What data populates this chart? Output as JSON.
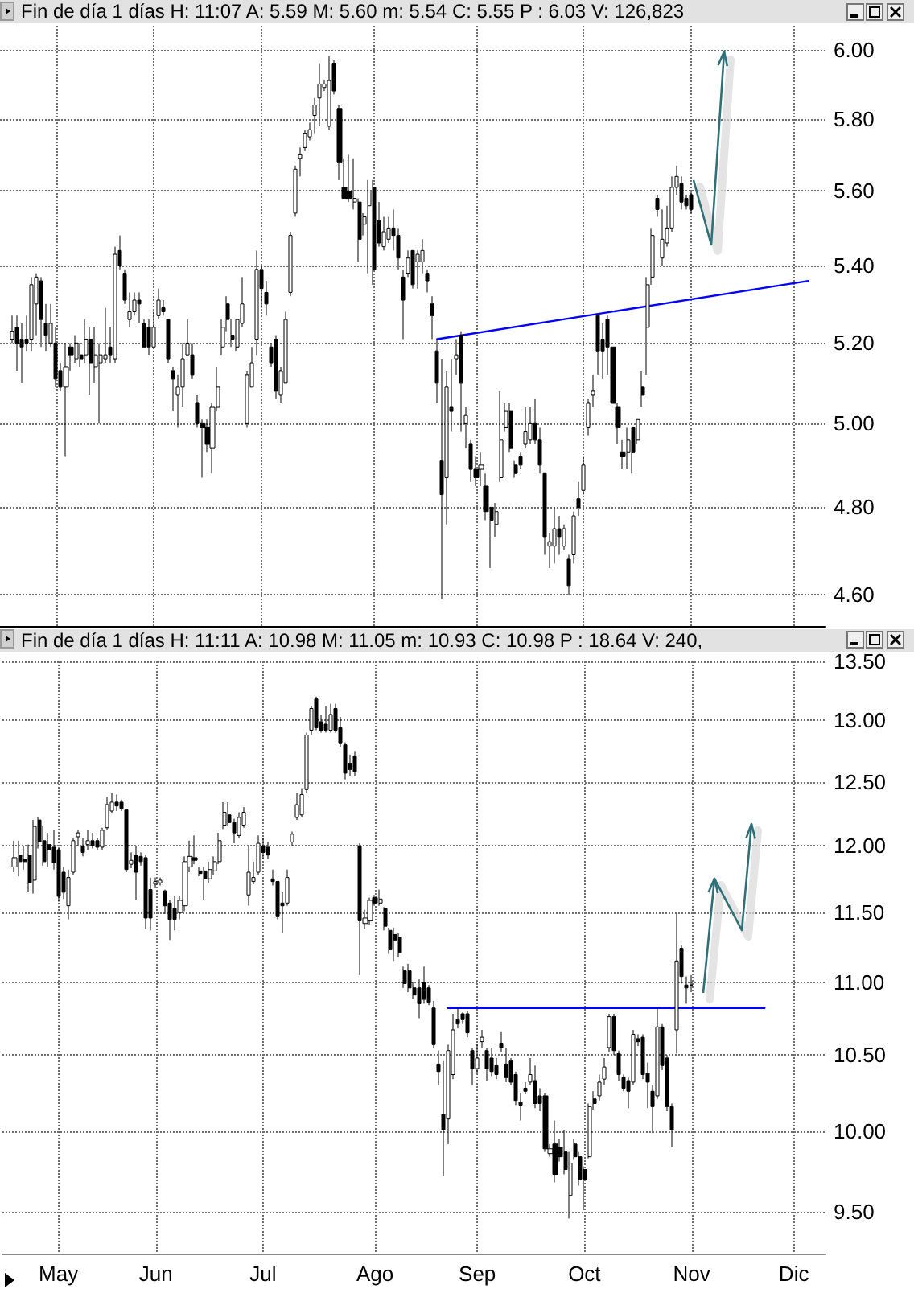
{
  "chart_data": [
    {
      "type": "candlestick",
      "title": "Fin de día 1 días H: 11:07 A: 5.59 M: 5.60 m: 5.54 C: 5.55 P : 6.03 V: 126,823",
      "categories": [
        null,
        null,
        null,
        null,
        null,
        null,
        null,
        null,
        null,
        null,
        null,
        null,
        null,
        null,
        null,
        null,
        null,
        null,
        null,
        null,
        null,
        null,
        null,
        null,
        null,
        null,
        null,
        null,
        null,
        null,
        null,
        null,
        null,
        null,
        null,
        null,
        null,
        null,
        null,
        null,
        null,
        null,
        null,
        null,
        null,
        null,
        null,
        null,
        null,
        null,
        null,
        null,
        null,
        null,
        null,
        null,
        null,
        null,
        null,
        null,
        null,
        null,
        null,
        null,
        null,
        null,
        null,
        null,
        null,
        null,
        null,
        null,
        null,
        null,
        null,
        null,
        null,
        null,
        null,
        null,
        null,
        null,
        null,
        null,
        null,
        null,
        null,
        null,
        null,
        null,
        null,
        null,
        null,
        null,
        null,
        null,
        null,
        null,
        null,
        null,
        null,
        null,
        null,
        null,
        null,
        null,
        null,
        null,
        null,
        null,
        null,
        null,
        null,
        null,
        null,
        null,
        null,
        null,
        null,
        null,
        null,
        null,
        null,
        null,
        null,
        null,
        null,
        null,
        null,
        null,
        null,
        null,
        null,
        null,
        null,
        null,
        null,
        null,
        null,
        null,
        null,
        null,
        null,
        null,
        null,
        null,
        null,
        null,
        null,
        null,
        null,
        null,
        null,
        null,
        null,
        null,
        null,
        null,
        null,
        null,
        null,
        null,
        null,
        null,
        null,
        null,
        null,
        null,
        null
      ],
      "ohlc": [
        null,
        null,
        [
          5.21,
          5.27,
          5.2,
          5.23
        ],
        [
          5.24,
          5.27,
          5.13,
          5.2
        ],
        [
          5.21,
          5.25,
          5.1,
          5.19
        ],
        [
          5.21,
          5.27,
          5.18,
          5.2
        ],
        [
          5.21,
          5.37,
          5.18,
          5.35
        ],
        [
          5.3,
          5.38,
          5.22,
          5.37
        ],
        [
          5.36,
          5.37,
          5.19,
          5.26
        ],
        [
          5.25,
          5.3,
          5.18,
          5.22
        ],
        [
          5.2,
          5.3,
          5.19,
          5.25
        ],
        [
          5.2,
          5.24,
          5.09,
          5.11
        ],
        [
          5.13,
          5.15,
          5.08,
          5.09
        ],
        [
          5.09,
          5.2,
          4.92,
          5.14
        ],
        [
          5.19,
          5.2,
          5.13,
          5.17
        ],
        [
          5.16,
          5.22,
          5.15,
          5.2
        ],
        [
          5.17,
          5.2,
          5.14,
          5.16
        ],
        [
          5.17,
          5.26,
          5.15,
          5.21
        ],
        [
          5.21,
          5.24,
          5.07,
          5.15
        ],
        [
          5.14,
          5.24,
          5.1,
          5.17
        ],
        [
          5.15,
          5.2,
          5.0,
          5.17
        ],
        [
          5.16,
          5.29,
          5.15,
          5.17
        ],
        [
          5.19,
          5.24,
          5.15,
          5.17
        ],
        [
          5.16,
          5.45,
          5.15,
          5.43
        ],
        [
          5.44,
          5.48,
          5.39,
          5.4
        ],
        [
          5.38,
          5.39,
          5.3,
          5.31
        ],
        [
          5.26,
          5.33,
          5.24,
          5.28
        ],
        [
          5.28,
          5.33,
          5.27,
          5.31
        ],
        [
          5.31,
          5.33,
          5.25,
          5.3
        ],
        [
          5.25,
          5.26,
          5.19,
          5.19
        ],
        [
          5.24,
          5.26,
          5.17,
          5.19
        ],
        [
          5.19,
          5.28,
          5.19,
          5.24
        ],
        [
          5.27,
          5.34,
          5.26,
          5.31
        ],
        [
          5.29,
          5.31,
          5.27,
          5.28
        ],
        [
          5.26,
          5.26,
          5.15,
          5.16
        ],
        [
          5.13,
          5.14,
          5.03,
          5.11
        ],
        [
          5.07,
          5.12,
          4.99,
          5.09
        ],
        [
          5.09,
          5.2,
          5.04,
          5.16
        ],
        [
          5.17,
          5.26,
          5.17,
          5.2
        ],
        [
          5.17,
          5.2,
          5.11,
          5.12
        ],
        [
          5.05,
          5.07,
          4.99,
          5.0
        ],
        [
          5.0,
          5.01,
          4.87,
          4.99
        ],
        [
          4.99,
          5.01,
          4.93,
          4.95
        ],
        [
          4.94,
          5.05,
          4.88,
          5.04
        ],
        [
          5.04,
          5.14,
          5.03,
          5.09
        ],
        [
          5.19,
          5.26,
          5.17,
          5.24
        ],
        [
          5.3,
          5.32,
          5.23,
          5.26
        ],
        [
          5.22,
          5.26,
          5.19,
          5.21
        ],
        [
          5.19,
          5.26,
          5.18,
          5.26
        ],
        [
          5.25,
          5.37,
          5.24,
          5.3
        ],
        [
          5.0,
          5.13,
          4.99,
          5.12
        ],
        [
          5.09,
          5.19,
          5.09,
          5.15
        ],
        [
          5.21,
          5.44,
          5.17,
          5.39
        ],
        [
          5.39,
          5.4,
          5.29,
          5.34
        ],
        [
          5.33,
          5.36,
          5.27,
          5.3
        ],
        [
          5.19,
          5.2,
          5.14,
          5.15
        ],
        [
          5.21,
          5.22,
          5.06,
          5.08
        ],
        [
          5.07,
          5.14,
          5.05,
          5.13
        ],
        [
          5.1,
          5.28,
          5.1,
          5.26
        ],
        [
          5.33,
          5.49,
          5.32,
          5.48
        ],
        [
          5.54,
          5.67,
          5.53,
          5.66
        ],
        [
          5.69,
          5.72,
          5.64,
          5.7
        ],
        [
          5.72,
          5.77,
          5.71,
          5.76
        ],
        [
          5.75,
          5.79,
          5.74,
          5.77
        ],
        [
          5.81,
          5.86,
          5.76,
          5.84
        ],
        [
          5.86,
          5.96,
          5.78,
          5.9
        ],
        [
          5.89,
          5.91,
          5.88,
          5.9
        ],
        [
          5.78,
          5.98,
          5.77,
          5.91
        ],
        [
          5.96,
          5.97,
          5.87,
          5.88
        ],
        [
          5.83,
          5.84,
          5.63,
          5.68
        ],
        [
          5.61,
          5.69,
          5.58,
          5.58
        ],
        [
          5.6,
          5.7,
          5.57,
          5.58
        ],
        [
          5.57,
          5.69,
          5.55,
          5.58
        ],
        [
          5.57,
          5.58,
          5.41,
          5.47
        ],
        [
          5.51,
          5.54,
          5.48,
          5.53
        ],
        [
          5.56,
          5.63,
          5.38,
          5.6
        ],
        [
          5.61,
          5.63,
          5.35,
          5.39
        ],
        [
          5.52,
          5.57,
          5.45,
          5.46
        ],
        [
          5.45,
          5.53,
          5.44,
          5.49
        ],
        [
          5.47,
          5.53,
          5.46,
          5.5
        ],
        [
          5.5,
          5.55,
          5.44,
          5.48
        ],
        [
          5.48,
          5.5,
          5.39,
          5.42
        ],
        [
          5.37,
          5.39,
          5.21,
          5.31
        ],
        [
          5.38,
          5.44,
          5.37,
          5.42
        ],
        [
          5.44,
          5.44,
          5.34,
          5.35
        ],
        [
          5.41,
          5.44,
          5.34,
          5.43
        ],
        [
          5.41,
          5.47,
          5.38,
          5.44
        ],
        [
          5.38,
          5.39,
          5.33,
          5.36
        ],
        [
          5.3,
          5.32,
          5.21,
          5.27
        ],
        [
          5.18,
          5.21,
          5.05,
          5.1
        ],
        [
          4.91,
          5.16,
          4.59,
          4.83
        ],
        [
          4.87,
          5.13,
          4.76,
          5.09
        ],
        [
          5.04,
          5.16,
          4.98,
          5.03
        ],
        [
          5.16,
          5.21,
          5.12,
          5.17
        ],
        [
          5.22,
          5.23,
          4.98,
          5.1
        ],
        [
          5.0,
          5.04,
          4.94,
          5.02
        ],
        [
          4.95,
          4.96,
          4.86,
          4.89
        ],
        [
          4.89,
          4.92,
          4.85,
          4.87
        ],
        [
          4.89,
          4.93,
          4.85,
          4.9
        ],
        [
          4.85,
          4.88,
          4.77,
          4.79
        ],
        [
          4.8,
          4.8,
          4.66,
          4.77
        ],
        [
          4.76,
          4.81,
          4.73,
          4.79
        ],
        [
          4.87,
          5.08,
          4.86,
          4.96
        ],
        [
          4.99,
          5.05,
          4.98,
          5.03
        ],
        [
          5.03,
          5.05,
          4.93,
          4.94
        ],
        [
          4.9,
          4.91,
          4.87,
          4.88
        ],
        [
          4.92,
          4.93,
          4.89,
          4.9
        ],
        [
          4.95,
          5.04,
          4.94,
          4.98
        ],
        [
          4.96,
          5.04,
          4.95,
          5.0
        ],
        [
          5.0,
          5.06,
          4.95,
          4.96
        ],
        [
          4.96,
          4.99,
          4.88,
          4.9
        ],
        [
          4.88,
          4.88,
          4.69,
          4.73
        ],
        [
          4.71,
          4.74,
          4.66,
          4.72
        ],
        [
          4.71,
          4.8,
          4.67,
          4.75
        ],
        [
          4.75,
          4.78,
          4.69,
          4.73
        ],
        [
          4.71,
          4.76,
          4.7,
          4.75
        ],
        [
          4.68,
          4.69,
          4.6,
          4.62
        ],
        [
          4.69,
          4.79,
          4.67,
          4.78
        ],
        [
          4.82,
          4.86,
          4.78,
          4.8
        ],
        [
          4.84,
          4.92,
          4.83,
          4.9
        ],
        [
          4.99,
          5.06,
          4.97,
          5.05
        ],
        [
          5.07,
          5.12,
          5.04,
          5.08
        ],
        [
          5.27,
          5.27,
          5.12,
          5.18
        ],
        [
          5.21,
          5.25,
          5.11,
          5.18
        ],
        [
          5.26,
          5.27,
          5.12,
          5.19
        ],
        [
          5.19,
          5.19,
          5.05,
          5.05
        ],
        [
          5.04,
          5.05,
          4.95,
          4.99
        ],
        [
          4.93,
          4.96,
          4.89,
          4.92
        ],
        [
          4.93,
          4.99,
          4.89,
          4.96
        ],
        [
          4.99,
          4.99,
          4.88,
          4.93
        ],
        [
          4.96,
          5.01,
          4.95,
          5.01
        ],
        [
          5.09,
          5.13,
          5.04,
          5.07
        ],
        [
          5.24,
          5.37,
          5.12,
          5.35
        ],
        [
          5.37,
          5.5,
          5.35,
          5.48
        ],
        [
          5.58,
          5.59,
          5.53,
          5.55
        ],
        [
          5.42,
          5.55,
          5.4,
          5.47
        ],
        [
          5.46,
          5.56,
          5.45,
          5.5
        ],
        [
          5.5,
          5.64,
          5.49,
          5.61
        ],
        [
          5.61,
          5.67,
          5.59,
          5.64
        ],
        [
          5.62,
          5.64,
          5.55,
          5.57
        ],
        [
          5.58,
          5.59,
          5.55,
          5.56
        ],
        [
          5.59,
          5.6,
          5.54,
          5.55
        ],
        null,
        null,
        null,
        null,
        null,
        null,
        null,
        null,
        null,
        null,
        null,
        null,
        null,
        null,
        null,
        null,
        null,
        null,
        null,
        null,
        null,
        null,
        null,
        null,
        null,
        null,
        null
      ],
      "color": "#000000",
      "series": [
        {
          "type": "line",
          "color": "#0000ff",
          "values": [
            null,
            null,
            null,
            null,
            null,
            null,
            null,
            null,
            null,
            null,
            null,
            null,
            null,
            null,
            null,
            null,
            null,
            null,
            null,
            null,
            null,
            null,
            null,
            null,
            null,
            null,
            null,
            null,
            null,
            null,
            null,
            null,
            null,
            null,
            null,
            null,
            null,
            null,
            null,
            null,
            null,
            null,
            null,
            null,
            null,
            null,
            null,
            null,
            null,
            null,
            null,
            null,
            null,
            null,
            null,
            null,
            null,
            null,
            null,
            null,
            null,
            null,
            null,
            null,
            null,
            null,
            null,
            null,
            null,
            null,
            null,
            null,
            null,
            null,
            null,
            null,
            null,
            null,
            null,
            null,
            null,
            null,
            null,
            null,
            null,
            null,
            null,
            null,
            null,
            5.21,
            null,
            null,
            null,
            null,
            null,
            null,
            null,
            null,
            null,
            null,
            null,
            null,
            null,
            null,
            null,
            null,
            null,
            null,
            null,
            null,
            null,
            null,
            null,
            null,
            null,
            null,
            null,
            null,
            null,
            null,
            null,
            null,
            null,
            null,
            null,
            null,
            null,
            null,
            null,
            null,
            null,
            null,
            null,
            null,
            null,
            null,
            null,
            null,
            null,
            null,
            null,
            null,
            null,
            null,
            null,
            null,
            null,
            null,
            null,
            null,
            null,
            null,
            null,
            null,
            null,
            null,
            null,
            null,
            null,
            null,
            null,
            null,
            null,
            null,
            null,
            5.36,
            null,
            null,
            null
          ]
        }
      ],
      "ylim": [
        4.53,
        6.07
      ],
      "yticks": [
        {
          "value": 4.6,
          "label": "4.60"
        },
        {
          "value": 4.8,
          "label": "4.80"
        },
        {
          "value": 5,
          "label": "5.00"
        },
        {
          "value": 5.2,
          "label": "5.20"
        },
        {
          "value": 5.4,
          "label": "5.40"
        },
        {
          "value": 5.6,
          "label": "5.60"
        },
        {
          "value": 5.8,
          "label": "5.80"
        },
        {
          "value": 6,
          "label": "6.00"
        }
      ],
      "log": "y",
      "grid": true,
      "tick_labels": "y"
    },
    {
      "type": "candlestick",
      "title": "Fin de día 1 días H: 11:11 A: 10.98 M: 11.05 m: 10.93 C: 10.98 P : 18.64 V: 240,",
      "categories": [
        null,
        null,
        null,
        null,
        null,
        null,
        null,
        null,
        null,
        null,
        null,
        "May",
        null,
        null,
        null,
        null,
        null,
        null,
        null,
        null,
        null,
        null,
        null,
        null,
        null,
        null,
        null,
        null,
        null,
        null,
        null,
        "Jun",
        null,
        null,
        null,
        null,
        null,
        null,
        null,
        null,
        null,
        null,
        null,
        null,
        null,
        null,
        null,
        null,
        null,
        null,
        null,
        null,
        null,
        "Jul",
        null,
        null,
        null,
        null,
        null,
        null,
        null,
        null,
        null,
        null,
        null,
        null,
        null,
        null,
        null,
        null,
        null,
        null,
        null,
        null,
        null,
        null,
        "Ago",
        null,
        null,
        null,
        null,
        null,
        null,
        null,
        null,
        null,
        null,
        null,
        null,
        null,
        null,
        null,
        null,
        null,
        null,
        null,
        null,
        "Sep",
        null,
        null,
        null,
        null,
        null,
        null,
        null,
        null,
        null,
        null,
        null,
        null,
        null,
        null,
        null,
        null,
        null,
        null,
        null,
        null,
        null,
        "Oct",
        null,
        null,
        null,
        null,
        null,
        null,
        null,
        null,
        null,
        null,
        null,
        null,
        null,
        null,
        null,
        null,
        null,
        null,
        null,
        null,
        null,
        "Nov",
        null,
        null,
        null,
        null,
        null,
        null,
        null,
        null,
        null,
        null,
        null,
        null,
        null,
        null,
        null,
        null,
        null,
        null,
        null,
        null,
        "Dic",
        null,
        null,
        null,
        null,
        null,
        null
      ],
      "ohlc": [
        null,
        null,
        [
          11.84,
          12.04,
          11.8,
          11.91
        ],
        [
          11.93,
          12.04,
          11.77,
          11.88
        ],
        [
          11.9,
          12.0,
          11.82,
          11.88
        ],
        [
          11.93,
          12.01,
          11.65,
          11.72
        ],
        [
          11.74,
          12.2,
          11.64,
          12.15
        ],
        [
          12.2,
          12.22,
          11.98,
          12.03
        ],
        [
          12.04,
          12.15,
          11.85,
          11.88
        ],
        [
          12.01,
          12.1,
          11.84,
          11.97
        ],
        [
          11.99,
          12.12,
          11.82,
          11.87
        ],
        [
          11.97,
          11.99,
          11.58,
          11.62
        ],
        [
          11.8,
          11.84,
          11.6,
          11.65
        ],
        [
          11.55,
          11.82,
          11.45,
          11.76
        ],
        [
          11.8,
          12.06,
          11.78,
          12.04
        ],
        [
          12.07,
          12.12,
          12.0,
          12.1
        ],
        [
          12.0,
          12.06,
          11.92,
          11.95
        ],
        [
          12.01,
          12.12,
          11.97,
          12.04
        ],
        [
          12.04,
          12.1,
          11.98,
          12.0
        ],
        [
          12.04,
          12.06,
          11.97,
          11.99
        ],
        [
          11.99,
          12.14,
          11.97,
          12.12
        ],
        [
          12.14,
          12.38,
          12.12,
          12.32
        ],
        [
          12.27,
          12.41,
          12.25,
          12.34
        ],
        [
          12.34,
          12.4,
          12.27,
          12.31
        ],
        [
          12.34,
          12.36,
          12.27,
          12.29
        ],
        [
          12.28,
          12.28,
          11.8,
          11.82
        ],
        [
          11.86,
          11.95,
          11.83,
          11.89
        ],
        [
          11.93,
          12.0,
          11.59,
          11.8
        ],
        [
          11.92,
          11.95,
          11.85,
          11.88
        ],
        [
          11.91,
          11.93,
          11.38,
          11.46
        ],
        [
          11.67,
          11.76,
          11.37,
          11.46
        ],
        [
          11.71,
          11.76,
          11.68,
          11.73
        ],
        [
          11.72,
          11.76,
          11.7,
          11.74
        ],
        [
          11.66,
          11.67,
          11.49,
          11.55
        ],
        [
          11.57,
          11.59,
          11.3,
          11.45
        ],
        [
          11.53,
          11.62,
          11.37,
          11.45
        ],
        [
          11.5,
          11.62,
          11.45,
          11.59
        ],
        [
          11.55,
          11.92,
          11.51,
          11.88
        ],
        [
          11.84,
          12.04,
          11.8,
          11.92
        ],
        [
          11.91,
          12.08,
          11.86,
          11.89
        ],
        [
          11.81,
          11.84,
          11.77,
          11.79
        ],
        [
          11.81,
          11.84,
          11.59,
          11.75
        ],
        [
          11.75,
          11.88,
          11.72,
          11.82
        ],
        [
          11.81,
          11.92,
          11.78,
          11.88
        ],
        [
          11.88,
          12.1,
          11.86,
          12.04
        ],
        [
          12.16,
          12.34,
          12.13,
          12.26
        ],
        [
          12.24,
          12.34,
          12.15,
          12.18
        ],
        [
          12.18,
          12.21,
          12.02,
          12.1
        ],
        [
          12.08,
          12.26,
          12.06,
          12.22
        ],
        [
          12.16,
          12.3,
          12.14,
          12.26
        ],
        [
          11.63,
          12.0,
          11.55,
          11.8
        ],
        [
          11.73,
          11.88,
          11.71,
          11.76
        ],
        [
          11.8,
          12.08,
          11.78,
          12.02
        ],
        [
          12.0,
          12.06,
          11.9,
          11.95
        ],
        [
          11.99,
          12.03,
          11.9,
          11.93
        ],
        [
          11.75,
          11.82,
          11.7,
          11.73
        ],
        [
          11.73,
          11.73,
          11.45,
          11.47
        ],
        [
          11.57,
          11.65,
          11.35,
          11.55
        ],
        [
          11.57,
          11.82,
          11.55,
          11.76
        ],
        [
          12.03,
          12.11,
          12.0,
          12.09
        ],
        [
          12.22,
          12.41,
          12.2,
          12.32
        ],
        [
          12.24,
          12.45,
          12.22,
          12.4
        ],
        [
          12.44,
          12.9,
          12.41,
          12.88
        ],
        [
          12.92,
          13.12,
          12.88,
          13.1
        ],
        [
          13.18,
          13.2,
          12.92,
          12.94
        ],
        [
          12.99,
          13.05,
          12.9,
          12.92
        ],
        [
          12.97,
          13.12,
          12.9,
          12.92
        ],
        [
          12.92,
          13.14,
          12.9,
          13.05
        ],
        [
          13.1,
          13.14,
          12.9,
          12.92
        ],
        [
          12.94,
          13.03,
          12.78,
          12.81
        ],
        [
          12.8,
          12.82,
          12.52,
          12.57
        ],
        [
          12.65,
          12.72,
          12.55,
          12.6
        ],
        [
          12.71,
          12.75,
          12.55,
          12.58
        ],
        [
          12.0,
          12.02,
          11.05,
          11.44
        ],
        [
          11.42,
          11.52,
          11.38,
          11.46
        ],
        [
          11.44,
          11.61,
          11.41,
          11.59
        ],
        [
          11.61,
          11.63,
          11.55,
          11.57
        ],
        [
          11.57,
          11.67,
          11.55,
          11.6
        ],
        [
          11.53,
          11.54,
          11.37,
          11.4
        ],
        [
          11.37,
          11.39,
          11.2,
          11.23
        ],
        [
          11.34,
          11.39,
          11.15,
          11.3
        ],
        [
          11.32,
          11.35,
          11.18,
          11.21
        ],
        [
          11.08,
          11.11,
          10.96,
          10.99
        ],
        [
          11.08,
          11.13,
          10.93,
          10.96
        ],
        [
          10.96,
          11.0,
          10.88,
          10.91
        ],
        [
          10.96,
          11.02,
          10.75,
          10.85
        ],
        [
          11.0,
          11.11,
          10.85,
          10.88
        ],
        [
          10.96,
          10.98,
          10.84,
          10.86
        ],
        [
          10.82,
          10.87,
          10.55,
          10.57
        ],
        [
          10.44,
          10.53,
          10.3,
          10.39
        ],
        [
          10.11,
          10.46,
          9.72,
          10.01
        ],
        [
          10.08,
          10.57,
          9.92,
          10.53
        ],
        [
          10.37,
          10.78,
          10.34,
          10.67
        ],
        [
          10.74,
          10.82,
          10.68,
          10.71
        ],
        [
          10.78,
          10.79,
          10.71,
          10.74
        ],
        [
          10.78,
          10.8,
          10.62,
          10.65
        ],
        [
          10.53,
          10.55,
          10.3,
          10.41
        ],
        [
          10.41,
          10.57,
          10.38,
          10.48
        ],
        [
          10.59,
          10.67,
          10.55,
          10.62
        ],
        [
          10.53,
          10.55,
          10.33,
          10.41
        ],
        [
          10.48,
          10.55,
          10.36,
          10.39
        ],
        [
          10.43,
          10.48,
          10.34,
          10.37
        ],
        [
          10.58,
          10.66,
          10.52,
          10.55
        ],
        [
          10.44,
          10.55,
          10.32,
          10.35
        ],
        [
          10.46,
          10.48,
          10.3,
          10.32
        ],
        [
          10.37,
          10.39,
          10.17,
          10.2
        ],
        [
          10.19,
          10.25,
          10.07,
          10.17
        ],
        [
          10.28,
          10.32,
          10.24,
          10.26
        ],
        [
          10.32,
          10.48,
          10.3,
          10.37
        ],
        [
          10.33,
          10.43,
          10.15,
          10.18
        ],
        [
          10.23,
          10.28,
          10.13,
          10.18
        ],
        [
          10.23,
          10.25,
          9.87,
          9.89
        ],
        [
          9.86,
          9.92,
          9.84,
          9.89
        ],
        [
          9.92,
          10.07,
          9.68,
          9.73
        ],
        [
          9.9,
          9.95,
          9.81,
          9.84
        ],
        [
          9.87,
          10.01,
          9.73,
          9.76
        ],
        [
          9.6,
          9.87,
          9.46,
          9.8
        ],
        [
          9.92,
          9.95,
          9.82,
          9.84
        ],
        [
          9.84,
          9.87,
          9.66,
          9.7
        ],
        [
          9.76,
          9.78,
          9.51,
          9.7
        ],
        [
          9.84,
          10.18,
          9.83,
          10.16
        ],
        [
          10.21,
          10.26,
          10.14,
          10.18
        ],
        [
          10.23,
          10.37,
          10.2,
          10.32
        ],
        [
          10.34,
          10.48,
          10.3,
          10.42
        ],
        [
          10.55,
          10.78,
          10.52,
          10.76
        ],
        [
          10.76,
          10.78,
          10.5,
          10.53
        ],
        [
          10.51,
          10.53,
          10.33,
          10.37
        ],
        [
          10.35,
          10.37,
          10.26,
          10.28
        ],
        [
          10.33,
          10.35,
          10.15,
          10.26
        ],
        [
          10.32,
          10.67,
          10.3,
          10.64
        ],
        [
          10.61,
          10.64,
          10.56,
          10.59
        ],
        [
          10.62,
          10.64,
          10.34,
          10.37
        ],
        [
          10.38,
          10.45,
          10.15,
          10.32
        ],
        [
          10.26,
          10.3,
          9.99,
          10.16
        ],
        [
          10.23,
          10.82,
          10.21,
          10.69
        ],
        [
          10.69,
          10.71,
          10.4,
          10.43
        ],
        [
          10.48,
          10.5,
          10.13,
          10.16
        ],
        [
          10.16,
          10.18,
          9.9,
          10.01
        ],
        [
          10.67,
          11.49,
          10.51,
          11.15
        ],
        [
          11.24,
          11.26,
          10.99,
          11.04
        ],
        [
          10.98,
          11.04,
          10.85,
          10.96
        ],
        [
          10.98,
          11.05,
          10.93,
          10.98
        ],
        null,
        null,
        null,
        null,
        null,
        null,
        null,
        null,
        null,
        null,
        null,
        null,
        null,
        null,
        null,
        null,
        null,
        null,
        null,
        null,
        null,
        null,
        null,
        null,
        null,
        null,
        null
      ],
      "color": "#000000",
      "series": [
        {
          "type": "line",
          "color": "#0000ff",
          "values": [
            null,
            null,
            null,
            null,
            null,
            null,
            null,
            null,
            null,
            null,
            null,
            null,
            null,
            null,
            null,
            null,
            null,
            null,
            null,
            null,
            null,
            null,
            null,
            null,
            null,
            null,
            null,
            null,
            null,
            null,
            null,
            null,
            null,
            null,
            null,
            null,
            null,
            null,
            null,
            null,
            null,
            null,
            null,
            null,
            null,
            null,
            null,
            null,
            null,
            null,
            null,
            null,
            null,
            null,
            null,
            null,
            null,
            null,
            null,
            null,
            null,
            null,
            null,
            null,
            null,
            null,
            null,
            null,
            null,
            null,
            null,
            null,
            null,
            null,
            null,
            null,
            null,
            null,
            null,
            null,
            null,
            null,
            null,
            null,
            null,
            null,
            null,
            null,
            null,
            null,
            null,
            10.82,
            null,
            null,
            null,
            null,
            null,
            null,
            null,
            null,
            null,
            null,
            null,
            null,
            null,
            null,
            null,
            null,
            null,
            null,
            null,
            null,
            null,
            null,
            null,
            null,
            null,
            null,
            null,
            null,
            null,
            null,
            null,
            null,
            null,
            null,
            null,
            null,
            null,
            null,
            null,
            null,
            null,
            null,
            null,
            null,
            null,
            null,
            null,
            null,
            null,
            null,
            null,
            null,
            null,
            null,
            null,
            null,
            null,
            null,
            null,
            null,
            null,
            null,
            null,
            null,
            10.82,
            null,
            null,
            null,
            null,
            null,
            null,
            null,
            null,
            null,
            null,
            null,
            null
          ]
        }
      ],
      "ylim": [
        9.25,
        13.5
      ],
      "yticks": [
        {
          "value": 9.5,
          "label": "9.50"
        },
        {
          "value": 10,
          "label": "10.00"
        },
        {
          "value": 10.5,
          "label": "10.50"
        },
        {
          "value": 11,
          "label": "11.00"
        },
        {
          "value": 11.5,
          "label": "11.50"
        },
        {
          "value": 12,
          "label": "12.00"
        },
        {
          "value": 12.5,
          "label": "12.50"
        },
        {
          "value": 13,
          "label": "13.00"
        },
        {
          "value": 13.5,
          "label": "13.50"
        }
      ],
      "log": "y",
      "grid": true
    }
  ]
}
